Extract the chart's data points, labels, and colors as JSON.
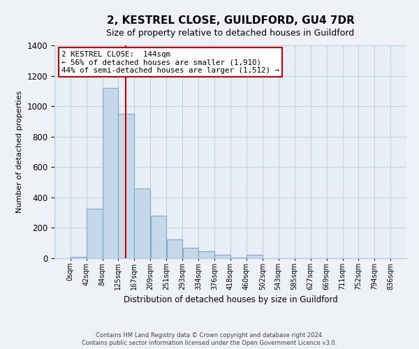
{
  "title": "2, KESTREL CLOSE, GUILDFORD, GU4 7DR",
  "subtitle": "Size of property relative to detached houses in Guildford",
  "xlabel": "Distribution of detached houses by size in Guildford",
  "ylabel": "Number of detached properties",
  "bar_color": "#c5d8ea",
  "bar_edge_color": "#7aaac8",
  "vline_x": 144,
  "vline_color": "#cc0000",
  "annotation_lines": [
    "2 KESTREL CLOSE:  144sqm",
    "← 56% of detached houses are smaller (1,910)",
    "44% of semi-detached houses are larger (1,512) →"
  ],
  "bin_edges": [
    0,
    42,
    84,
    125,
    167,
    209,
    251,
    293,
    334,
    376,
    418,
    460,
    502,
    543,
    585,
    627,
    669,
    711,
    752,
    794,
    836
  ],
  "bin_heights": [
    10,
    325,
    1120,
    950,
    460,
    280,
    125,
    68,
    45,
    22,
    5,
    22,
    2,
    0,
    0,
    0,
    0,
    2,
    0,
    0
  ],
  "ylim": [
    0,
    1400
  ],
  "yticks": [
    0,
    200,
    400,
    600,
    800,
    1000,
    1200,
    1400
  ],
  "footer_lines": [
    "Contains HM Land Registry data © Crown copyright and database right 2024.",
    "Contains public sector information licensed under the Open Government Licence v3.0."
  ],
  "background_color": "#eef2f7",
  "plot_bg_color": "#e8eef5",
  "annotation_box_color": "#ffffff",
  "annotation_border_color": "#cc0000",
  "grid_color": "#b8c8d8",
  "title_fontsize": 11,
  "subtitle_fontsize": 9,
  "ylabel_fontsize": 8,
  "xlabel_fontsize": 8.5,
  "ytick_fontsize": 8.5,
  "xtick_fontsize": 7
}
